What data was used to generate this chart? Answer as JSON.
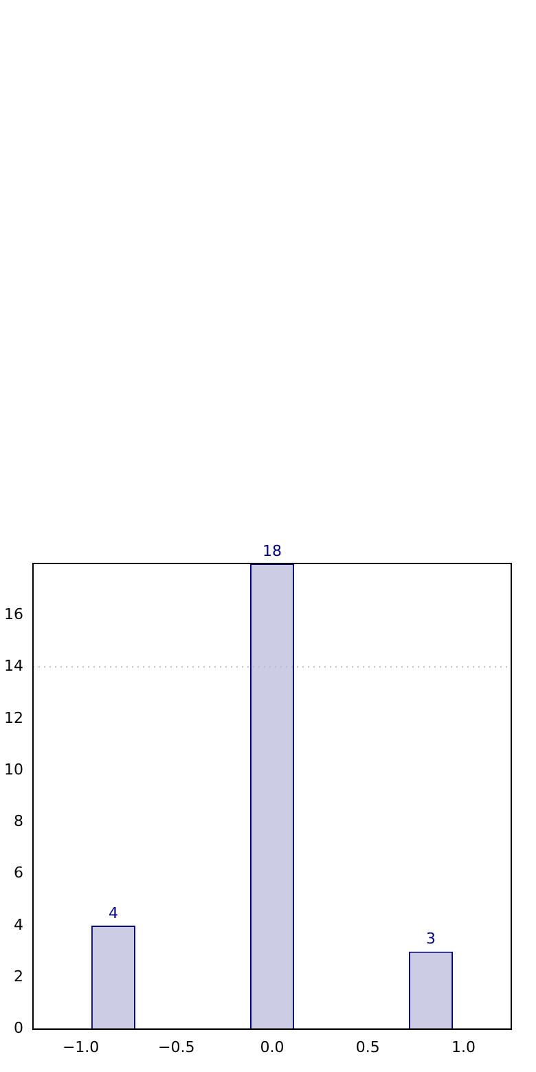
{
  "chart_data": {
    "type": "bar",
    "x": [
      -0.83,
      0,
      0.83
    ],
    "values": [
      4,
      18,
      3
    ],
    "color": "#cccce5",
    "xlim": [
      -1.25,
      1.25
    ],
    "xticks": [
      {
        "value": -1,
        "label": "−1.0"
      },
      {
        "value": -0.5,
        "label": "−0.5"
      },
      {
        "value": 0,
        "label": "0.0"
      },
      {
        "value": 0.5,
        "label": "0.5"
      },
      {
        "value": 1,
        "label": "1.0"
      }
    ],
    "ylim": [
      0,
      18
    ],
    "yticks": [
      0,
      2,
      4,
      6,
      8,
      10,
      12,
      14,
      16
    ],
    "ref_lines": [
      {
        "axis": "y",
        "value": 14,
        "color": "#bbbbbb",
        "line_style": "dotted"
      }
    ],
    "data_labels": true,
    "grid": false,
    "legend": false
  }
}
